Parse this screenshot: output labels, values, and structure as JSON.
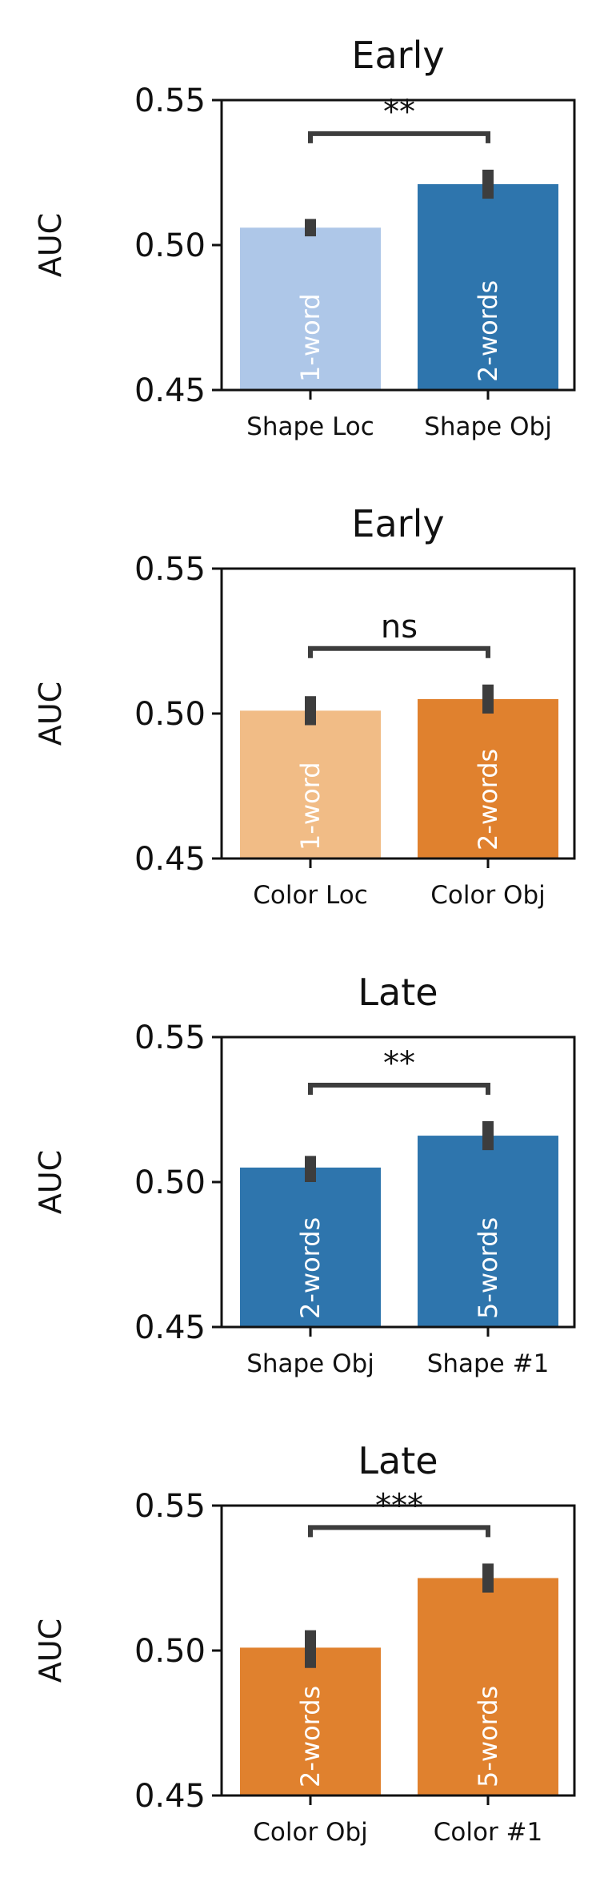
{
  "chart_data": [
    {
      "type": "bar",
      "title": "Early",
      "ylabel": "AUC",
      "ylim": [
        0.45,
        0.55
      ],
      "yticks": [
        "0.45",
        "0.50",
        "0.55"
      ],
      "categories": [
        "Shape Loc",
        "Shape Obj"
      ],
      "values": [
        0.506,
        0.521
      ],
      "errors": [
        [
          0.503,
          0.509
        ],
        [
          0.516,
          0.526
        ]
      ],
      "bar_labels": [
        "1-word",
        "2-words"
      ],
      "colors": [
        "#aec7e8",
        "#2e75ad"
      ],
      "significance": "**"
    },
    {
      "type": "bar",
      "title": "Early",
      "ylabel": "AUC",
      "ylim": [
        0.45,
        0.55
      ],
      "yticks": [
        "0.45",
        "0.50",
        "0.55"
      ],
      "categories": [
        "Color Loc",
        "Color Obj"
      ],
      "values": [
        0.501,
        0.505
      ],
      "errors": [
        [
          0.496,
          0.506
        ],
        [
          0.5,
          0.51
        ]
      ],
      "bar_labels": [
        "1-word",
        "2-words"
      ],
      "colors": [
        "#f1bc86",
        "#e0812e"
      ],
      "significance": "ns"
    },
    {
      "type": "bar",
      "title": "Late",
      "ylabel": "AUC",
      "ylim": [
        0.45,
        0.55
      ],
      "yticks": [
        "0.45",
        "0.50",
        "0.55"
      ],
      "categories": [
        "Shape Obj",
        "Shape #1"
      ],
      "values": [
        0.505,
        0.516
      ],
      "errors": [
        [
          0.5,
          0.509
        ],
        [
          0.511,
          0.521
        ]
      ],
      "bar_labels": [
        "2-words",
        "5-words"
      ],
      "colors": [
        "#2e75ad",
        "#2e75ad"
      ],
      "significance": "**"
    },
    {
      "type": "bar",
      "title": "Late",
      "ylabel": "AUC",
      "ylim": [
        0.45,
        0.55
      ],
      "yticks": [
        "0.45",
        "0.50",
        "0.55"
      ],
      "categories": [
        "Color Obj",
        "Color #1"
      ],
      "values": [
        0.501,
        0.525
      ],
      "errors": [
        [
          0.494,
          0.507
        ],
        [
          0.52,
          0.53
        ]
      ],
      "bar_labels": [
        "2-words",
        "5-words"
      ],
      "colors": [
        "#e0812e",
        "#e0812e"
      ],
      "significance": "***"
    }
  ]
}
